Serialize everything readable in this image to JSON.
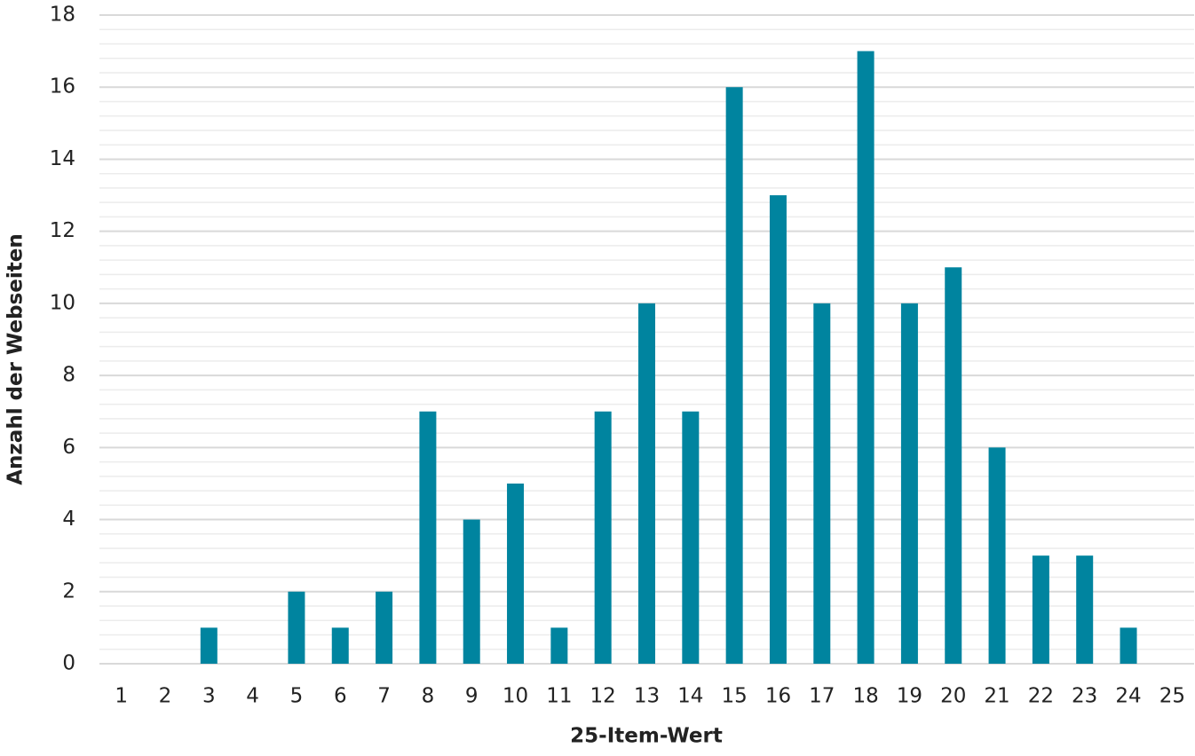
{
  "chart_data": {
    "type": "bar",
    "x_label": "25-Item-Wert",
    "y_label": "Anzahl der Webseiten",
    "categories": [
      "1",
      "2",
      "3",
      "4",
      "5",
      "6",
      "7",
      "8",
      "9",
      "10",
      "11",
      "12",
      "13",
      "14",
      "15",
      "16",
      "17",
      "18",
      "19",
      "20",
      "21",
      "22",
      "23",
      "24",
      "25"
    ],
    "values": [
      0,
      0,
      1,
      0,
      2,
      1,
      2,
      7,
      4,
      5,
      1,
      7,
      10,
      7,
      16,
      13,
      10,
      17,
      10,
      11,
      6,
      3,
      3,
      1,
      0
    ],
    "color": "#00849f",
    "ylim": [
      0,
      18
    ],
    "yticks": [
      0,
      2,
      4,
      6,
      8,
      10,
      12,
      14,
      16,
      18
    ],
    "grid": true,
    "minor_grid_divisions": 5
  }
}
